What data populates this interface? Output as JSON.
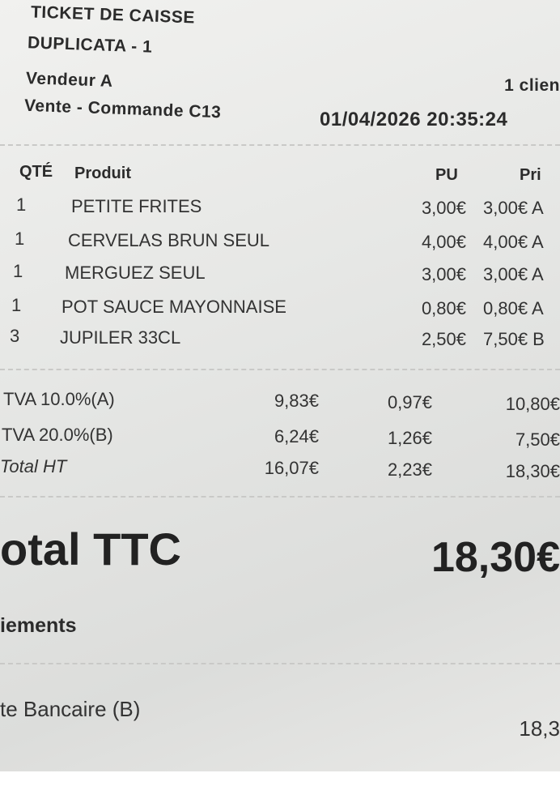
{
  "header": {
    "title": "TICKET DE CAISSE",
    "subtitle": "DUPLICATA - 1",
    "seller": "Vendeur A",
    "clients": "1 clien",
    "order": "Vente - Commande C13",
    "datetime": "01/04/2026 20:35:24"
  },
  "items": {
    "columns": [
      "QTÉ",
      "Produit",
      "PU",
      "Pri"
    ],
    "rows": [
      [
        "1",
        "PETITE FRITES",
        "3,00€",
        "3,00€ A"
      ],
      [
        "1",
        "CERVELAS BRUN SEUL",
        "4,00€",
        "4,00€ A"
      ],
      [
        "1",
        "MERGUEZ SEUL",
        "3,00€",
        "3,00€ A"
      ],
      [
        "1",
        "POT SAUCE MAYONNAISE",
        "0,80€",
        "0,80€ A"
      ],
      [
        "3",
        "JUPILER 33CL",
        "2,50€",
        "7,50€ B"
      ]
    ]
  },
  "taxes": {
    "rows": [
      [
        "TVA 10.0%(A)",
        "9,83€",
        "0,97€",
        "10,80€"
      ],
      [
        "TVA 20.0%(B)",
        "6,24€",
        "1,26€",
        "7,50€"
      ],
      [
        "Total HT",
        "16,07€",
        "2,23€",
        "18,30€"
      ]
    ]
  },
  "total": {
    "label": "otal TTC",
    "value": "18,30€"
  },
  "payments": {
    "title": "iements",
    "method": "te Bancaire (B)",
    "amount": "18,3"
  }
}
